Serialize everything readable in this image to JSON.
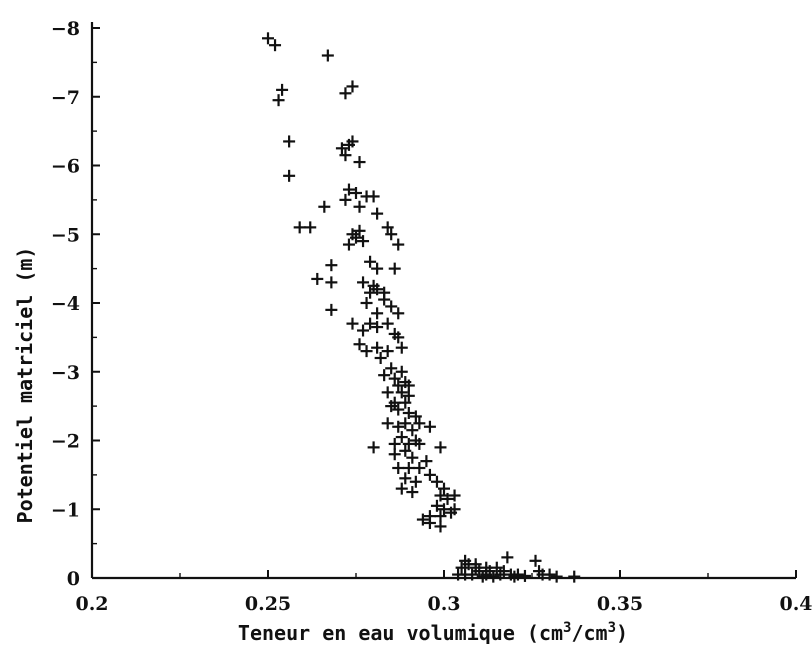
{
  "chart_data": {
    "type": "scatter",
    "title": "",
    "xlabel": "Teneur en eau volumique (cm",
    "xlabel_sup": "3",
    "xlabel_mid": "/cm",
    "xlabel_sup2": "3",
    "xlabel_end": ")",
    "ylabel": "Potentiel matriciel (m)",
    "xlim": [
      0.2,
      0.4
    ],
    "ylim": [
      0,
      -8
    ],
    "x_ticks": [
      0.2,
      0.25,
      0.3,
      0.35,
      0.4
    ],
    "x_tick_labels": [
      "0.2",
      "0.25",
      "0.3",
      "0.35",
      "0.4"
    ],
    "y_ticks": [
      0,
      -1,
      -2,
      -3,
      -4,
      -5,
      -6,
      -7,
      -8
    ],
    "y_tick_labels": [
      "0",
      "−1",
      "−2",
      "−3",
      "−4",
      "−5",
      "−6",
      "−7",
      "−8"
    ],
    "grid": false,
    "marker": "plus",
    "points": [
      [
        0.25,
        -7.85
      ],
      [
        0.252,
        -7.75
      ],
      [
        0.267,
        -7.6
      ],
      [
        0.253,
        -6.95
      ],
      [
        0.254,
        -7.1
      ],
      [
        0.272,
        -7.05
      ],
      [
        0.274,
        -7.15
      ],
      [
        0.256,
        -6.35
      ],
      [
        0.271,
        -6.25
      ],
      [
        0.273,
        -6.3
      ],
      [
        0.274,
        -6.35
      ],
      [
        0.272,
        -6.15
      ],
      [
        0.276,
        -6.05
      ],
      [
        0.256,
        -5.85
      ],
      [
        0.273,
        -5.65
      ],
      [
        0.275,
        -5.6
      ],
      [
        0.278,
        -5.55
      ],
      [
        0.28,
        -5.55
      ],
      [
        0.272,
        -5.5
      ],
      [
        0.266,
        -5.4
      ],
      [
        0.276,
        -5.4
      ],
      [
        0.281,
        -5.3
      ],
      [
        0.259,
        -5.1
      ],
      [
        0.262,
        -5.1
      ],
      [
        0.276,
        -5.05
      ],
      [
        0.274,
        -5.0
      ],
      [
        0.284,
        -5.1
      ],
      [
        0.275,
        -4.95
      ],
      [
        0.277,
        -4.9
      ],
      [
        0.273,
        -4.85
      ],
      [
        0.285,
        -5.0
      ],
      [
        0.287,
        -4.85
      ],
      [
        0.268,
        -4.55
      ],
      [
        0.279,
        -4.6
      ],
      [
        0.281,
        -4.5
      ],
      [
        0.286,
        -4.5
      ],
      [
        0.264,
        -4.35
      ],
      [
        0.268,
        -4.3
      ],
      [
        0.277,
        -4.3
      ],
      [
        0.28,
        -4.25
      ],
      [
        0.279,
        -4.15
      ],
      [
        0.281,
        -4.2
      ],
      [
        0.283,
        -4.15
      ],
      [
        0.283,
        -4.05
      ],
      [
        0.278,
        -4.0
      ],
      [
        0.268,
        -3.9
      ],
      [
        0.285,
        -3.95
      ],
      [
        0.281,
        -3.85
      ],
      [
        0.287,
        -3.85
      ],
      [
        0.274,
        -3.7
      ],
      [
        0.279,
        -3.7
      ],
      [
        0.281,
        -3.65
      ],
      [
        0.284,
        -3.7
      ],
      [
        0.277,
        -3.6
      ],
      [
        0.286,
        -3.55
      ],
      [
        0.287,
        -3.5
      ],
      [
        0.276,
        -3.4
      ],
      [
        0.281,
        -3.35
      ],
      [
        0.278,
        -3.3
      ],
      [
        0.284,
        -3.3
      ],
      [
        0.288,
        -3.35
      ],
      [
        0.282,
        -3.2
      ],
      [
        0.285,
        -3.05
      ],
      [
        0.288,
        -3.0
      ],
      [
        0.283,
        -2.95
      ],
      [
        0.286,
        -2.9
      ],
      [
        0.289,
        -2.85
      ],
      [
        0.287,
        -2.8
      ],
      [
        0.29,
        -2.8
      ],
      [
        0.284,
        -2.7
      ],
      [
        0.288,
        -2.7
      ],
      [
        0.29,
        -2.65
      ],
      [
        0.286,
        -2.55
      ],
      [
        0.289,
        -2.55
      ],
      [
        0.285,
        -2.5
      ],
      [
        0.287,
        -2.45
      ],
      [
        0.29,
        -2.4
      ],
      [
        0.292,
        -2.35
      ],
      [
        0.284,
        -2.25
      ],
      [
        0.289,
        -2.25
      ],
      [
        0.293,
        -2.25
      ],
      [
        0.287,
        -2.2
      ],
      [
        0.291,
        -2.15
      ],
      [
        0.288,
        -2.05
      ],
      [
        0.292,
        -2.0
      ],
      [
        0.286,
        -1.95
      ],
      [
        0.29,
        -1.95
      ],
      [
        0.293,
        -1.95
      ],
      [
        0.28,
        -1.9
      ],
      [
        0.289,
        -1.85
      ],
      [
        0.286,
        -1.8
      ],
      [
        0.291,
        -1.75
      ],
      [
        0.295,
        -1.7
      ],
      [
        0.287,
        -1.6
      ],
      [
        0.29,
        -1.6
      ],
      [
        0.293,
        -1.6
      ],
      [
        0.296,
        -1.5
      ],
      [
        0.289,
        -1.45
      ],
      [
        0.292,
        -1.4
      ],
      [
        0.298,
        -1.4
      ],
      [
        0.3,
        -1.3
      ],
      [
        0.288,
        -1.3
      ],
      [
        0.291,
        -1.25
      ],
      [
        0.299,
        -1.2
      ],
      [
        0.301,
        -1.15
      ],
      [
        0.303,
        -1.2
      ],
      [
        0.298,
        -1.05
      ],
      [
        0.3,
        -1.0
      ],
      [
        0.303,
        -1.0
      ],
      [
        0.296,
        -0.9
      ],
      [
        0.299,
        -0.9
      ],
      [
        0.294,
        -0.85
      ],
      [
        0.296,
        -0.8
      ],
      [
        0.299,
        -0.75
      ],
      [
        0.302,
        -0.95
      ],
      [
        0.296,
        -2.2
      ],
      [
        0.299,
        -1.9
      ],
      [
        0.305,
        -0.15
      ],
      [
        0.307,
        -0.2
      ],
      [
        0.309,
        -0.15
      ],
      [
        0.31,
        -0.1
      ],
      [
        0.312,
        -0.05
      ],
      [
        0.313,
        -0.1
      ],
      [
        0.315,
        -0.15
      ],
      [
        0.316,
        -0.05
      ],
      [
        0.318,
        -0.3
      ],
      [
        0.317,
        -0.1
      ],
      [
        0.319,
        -0.05
      ],
      [
        0.321,
        -0.05
      ],
      [
        0.304,
        -0.05
      ],
      [
        0.306,
        -0.05
      ],
      [
        0.308,
        -0.05
      ],
      [
        0.311,
        -0.02
      ],
      [
        0.314,
        -0.02
      ],
      [
        0.32,
        -0.02
      ],
      [
        0.326,
        -0.25
      ],
      [
        0.327,
        -0.1
      ],
      [
        0.328,
        -0.05
      ],
      [
        0.33,
        -0.05
      ],
      [
        0.332,
        -0.02
      ],
      [
        0.337,
        -0.02
      ],
      [
        0.323,
        -0.03
      ],
      [
        0.306,
        -0.25
      ],
      [
        0.309,
        -0.2
      ],
      [
        0.312,
        -0.15
      ]
    ]
  }
}
